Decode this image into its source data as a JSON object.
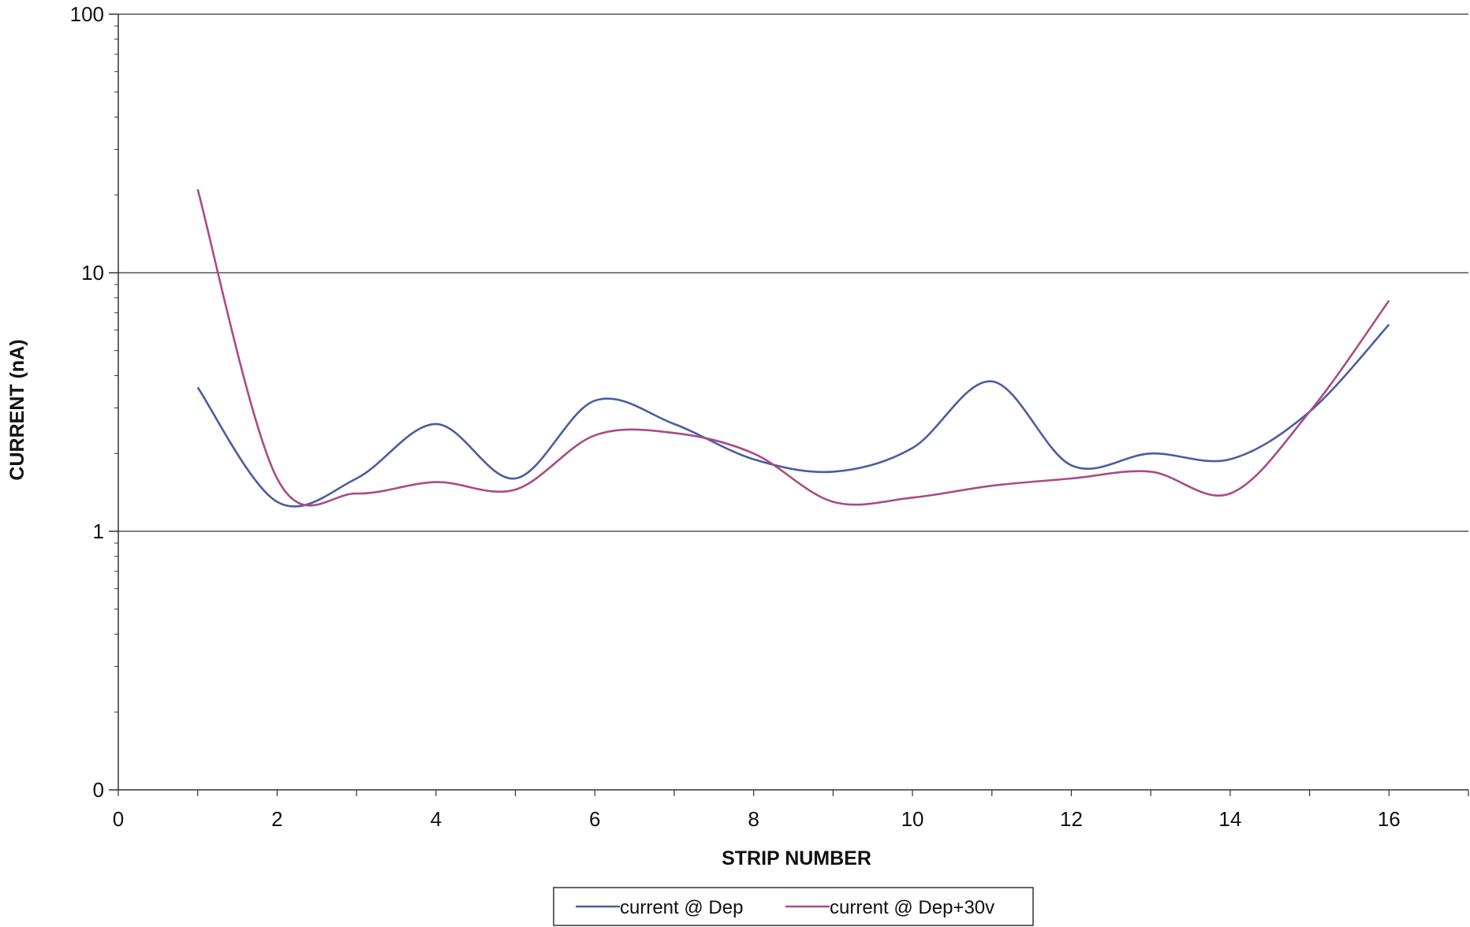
{
  "chart_data": {
    "type": "line",
    "title": "",
    "xlabel": "STRIP NUMBER",
    "ylabel": "CURRENT (nA)",
    "xlim": [
      0,
      17
    ],
    "xticks": [
      0,
      2,
      4,
      6,
      8,
      10,
      12,
      14,
      16
    ],
    "yscale": "log",
    "ylim": [
      0.1,
      100
    ],
    "yticks": [
      {
        "value": 0.1,
        "label": "0"
      },
      {
        "value": 1,
        "label": "1"
      },
      {
        "value": 10,
        "label": "10"
      },
      {
        "value": 100,
        "label": "100"
      }
    ],
    "grid": "horizontal major",
    "legend_position": "bottom",
    "x": [
      1,
      2,
      3,
      4,
      5,
      6,
      7,
      8,
      9,
      10,
      11,
      12,
      13,
      14,
      15,
      16
    ],
    "series": [
      {
        "name": "current @ Dep",
        "color": "#4a5d9e",
        "values": [
          3.6,
          1.3,
          1.6,
          2.6,
          1.6,
          3.2,
          2.6,
          1.9,
          1.7,
          2.1,
          3.8,
          1.8,
          2.0,
          1.9,
          2.9,
          6.3
        ]
      },
      {
        "name": "current @ Dep+30v",
        "color": "#a84c86",
        "values": [
          21,
          1.6,
          1.4,
          1.55,
          1.45,
          2.35,
          2.4,
          2.0,
          1.3,
          1.35,
          1.5,
          1.6,
          1.7,
          1.4,
          2.9,
          7.8
        ]
      }
    ]
  }
}
